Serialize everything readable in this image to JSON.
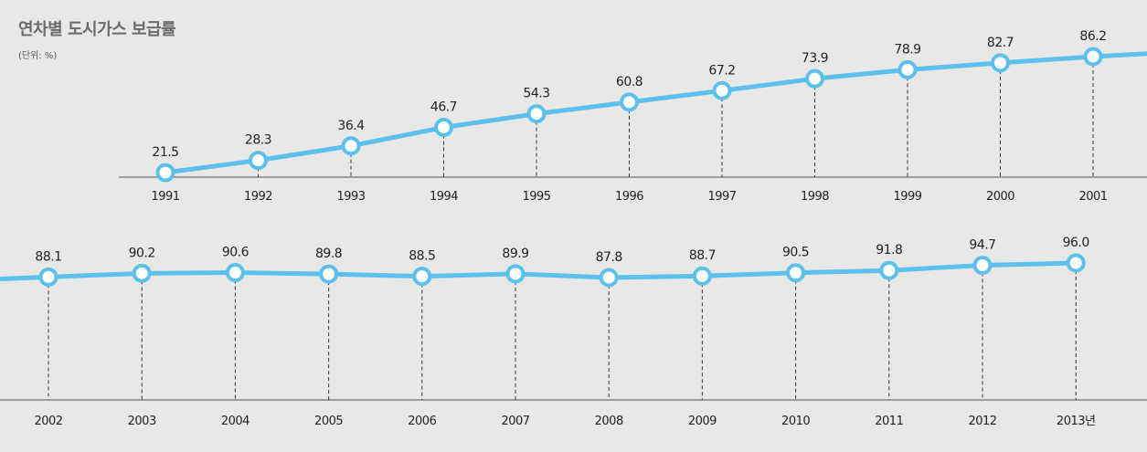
{
  "title": "연차별 도시가스 보급률",
  "unit_label": "(단위: %)",
  "colors": {
    "line": "#5bc0eb",
    "marker_fill": "#ffffff",
    "axis": "#555555",
    "background": "#e8e8e6"
  },
  "chart_data": {
    "type": "line",
    "title": "연차별 도시가스 보급률",
    "xlabel": "",
    "ylabel": "",
    "unit": "%",
    "grid": false,
    "legend": "none",
    "panels": [
      {
        "categories": [
          "1991",
          "1992",
          "1993",
          "1994",
          "1995",
          "1996",
          "1997",
          "1998",
          "1999",
          "2000",
          "2001"
        ],
        "values": [
          21.5,
          28.3,
          36.4,
          46.7,
          54.3,
          60.8,
          67.2,
          73.9,
          78.9,
          82.7,
          86.2
        ],
        "ylim": [
          21.5,
          86.2
        ]
      },
      {
        "categories": [
          "2002",
          "2003",
          "2004",
          "2005",
          "2006",
          "2007",
          "2008",
          "2009",
          "2010",
          "2011",
          "2012",
          "2013년"
        ],
        "values": [
          88.1,
          90.2,
          90.6,
          89.8,
          88.5,
          89.9,
          87.8,
          88.7,
          90.5,
          91.8,
          94.7,
          96.0
        ],
        "ylim": [
          87.8,
          96.0
        ]
      }
    ]
  }
}
